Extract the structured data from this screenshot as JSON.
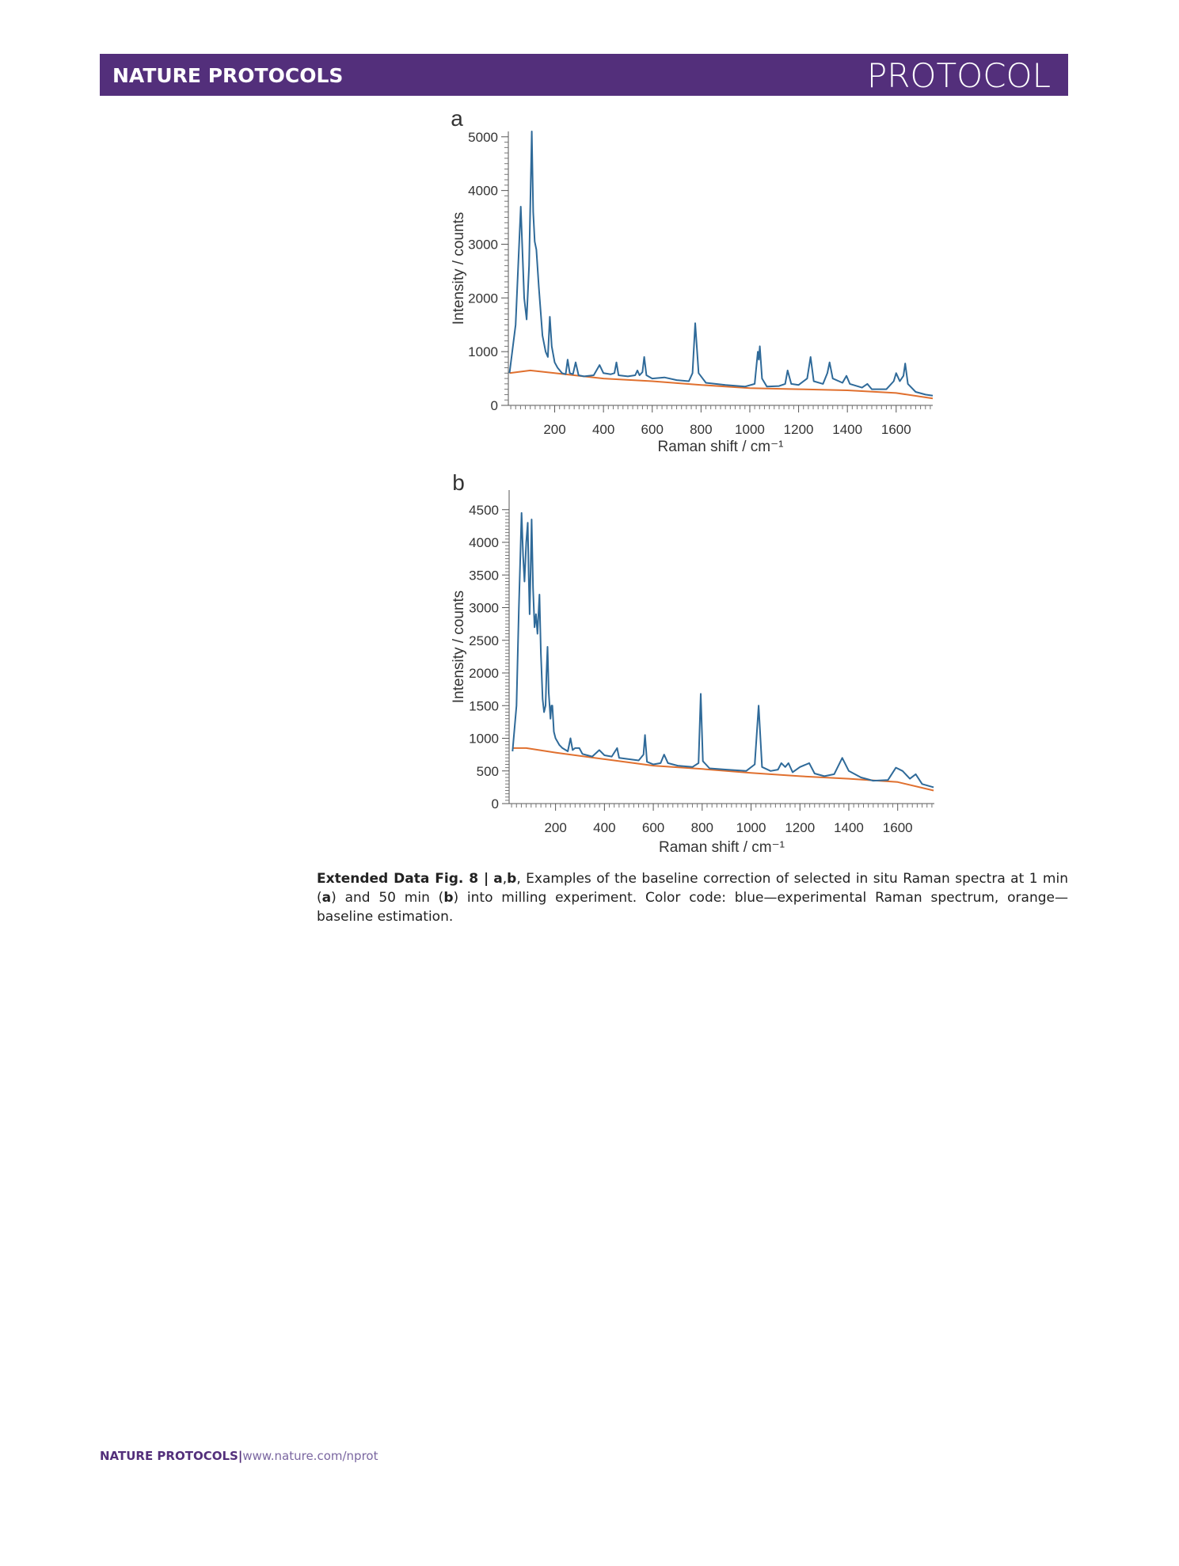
{
  "header": {
    "journal": "NATURE PROTOCOLS",
    "section": "PROTOCOL"
  },
  "chart_data": [
    {
      "type": "line",
      "panel": "a",
      "y_label": "Intensity / counts",
      "x_label": "Raman shift / cm⁻¹",
      "xlim": [
        10,
        1750
      ],
      "ylim": [
        0,
        5100
      ],
      "xticks": [
        200,
        400,
        600,
        800,
        1000,
        1200,
        1400,
        1600
      ],
      "yticks": [
        0,
        1000,
        2000,
        3000,
        4000,
        5000
      ],
      "series": [
        {
          "color": "#2f6a99",
          "x": [
            15,
            40,
            61,
            75,
            85,
            95,
            106,
            112,
            118,
            125,
            135,
            150,
            163,
            172,
            180,
            188,
            200,
            212,
            230,
            245,
            253,
            262,
            275,
            286,
            298,
            320,
            360,
            384,
            400,
            430,
            445,
            453,
            462,
            500,
            530,
            539,
            548,
            560,
            567,
            576,
            600,
            650,
            700,
            750,
            765,
            776,
            790,
            820,
            900,
            980,
            1020,
            1033,
            1037,
            1041,
            1050,
            1070,
            1120,
            1145,
            1155,
            1170,
            1200,
            1235,
            1249,
            1262,
            1300,
            1318,
            1327,
            1340,
            1380,
            1396,
            1410,
            1460,
            1482,
            1500,
            1560,
            1590,
            1600,
            1615,
            1630,
            1637,
            1648,
            1680,
            1720,
            1750
          ],
          "values": [
            600,
            1500,
            3700,
            2000,
            1600,
            2600,
            5100,
            3600,
            3050,
            2900,
            2200,
            1300,
            1000,
            900,
            1650,
            1100,
            800,
            700,
            600,
            580,
            850,
            600,
            580,
            800,
            560,
            540,
            560,
            750,
            600,
            580,
            600,
            800,
            560,
            540,
            560,
            650,
            560,
            620,
            900,
            560,
            500,
            520,
            470,
            450,
            600,
            1530,
            600,
            420,
            380,
            350,
            400,
            1000,
            850,
            1100,
            500,
            350,
            360,
            400,
            650,
            400,
            380,
            500,
            900,
            450,
            400,
            600,
            800,
            500,
            420,
            550,
            400,
            330,
            400,
            300,
            300,
            450,
            600,
            450,
            550,
            780,
            400,
            250,
            200,
            180
          ]
        },
        {
          "color": "#e0702f",
          "x": [
            15,
            100,
            200,
            400,
            600,
            800,
            1000,
            1200,
            1400,
            1600,
            1750
          ],
          "values": [
            600,
            650,
            600,
            500,
            450,
            380,
            320,
            300,
            280,
            230,
            130
          ]
        }
      ]
    },
    {
      "type": "line",
      "panel": "b",
      "y_label": "Intensity / counts",
      "x_label": "Raman shift / cm⁻¹",
      "xlim": [
        10,
        1750
      ],
      "ylim": [
        0,
        4800
      ],
      "xticks": [
        200,
        400,
        600,
        800,
        1000,
        1200,
        1400,
        1600
      ],
      "yticks": [
        0,
        500,
        1000,
        1500,
        2000,
        2500,
        3000,
        3500,
        4000,
        4500
      ],
      "series": [
        {
          "color": "#2f6a99",
          "x": [
            24,
            40,
            50,
            61,
            67,
            73,
            80,
            86,
            90,
            94,
            98,
            102,
            108,
            114,
            120,
            126,
            134,
            140,
            147,
            153,
            159,
            163,
            167,
            172,
            179,
            183,
            187,
            193,
            200,
            215,
            228,
            250,
            261,
            270,
            280,
            297,
            310,
            350,
            379,
            400,
            430,
            452,
            460,
            500,
            540,
            560,
            566,
            574,
            600,
            630,
            644,
            660,
            700,
            760,
            785,
            794,
            803,
            830,
            900,
            980,
            1015,
            1031,
            1045,
            1080,
            1110,
            1124,
            1140,
            1153,
            1170,
            1200,
            1238,
            1260,
            1300,
            1340,
            1373,
            1400,
            1450,
            1500,
            1560,
            1593,
            1620,
            1650,
            1674,
            1700,
            1747
          ],
          "values": [
            800,
            1500,
            3000,
            4450,
            3800,
            3400,
            4000,
            4300,
            3500,
            2900,
            3600,
            4350,
            3300,
            2700,
            2900,
            2600,
            3200,
            2300,
            1600,
            1400,
            1500,
            2000,
            2400,
            1700,
            1300,
            1500,
            1500,
            1100,
            1000,
            900,
            850,
            800,
            1000,
            820,
            850,
            850,
            760,
            720,
            820,
            740,
            720,
            850,
            700,
            680,
            660,
            750,
            1050,
            640,
            600,
            620,
            750,
            620,
            580,
            560,
            620,
            1680,
            650,
            540,
            520,
            500,
            600,
            1500,
            560,
            500,
            520,
            620,
            560,
            620,
            480,
            560,
            620,
            460,
            420,
            450,
            700,
            500,
            400,
            350,
            360,
            550,
            500,
            380,
            450,
            300,
            250
          ]
        },
        {
          "color": "#e0702f",
          "x": [
            24,
            80,
            200,
            400,
            600,
            800,
            1000,
            1200,
            1400,
            1600,
            1747
          ],
          "values": [
            850,
            850,
            780,
            680,
            580,
            530,
            470,
            420,
            380,
            330,
            200
          ]
        }
      ]
    }
  ],
  "caption": [
    {
      "text": "Extended Data Fig. 8 |",
      "bold": true
    },
    {
      "text": "a",
      "bold": true
    },
    {
      "text": ",",
      "bold": false
    },
    {
      "text": "b",
      "bold": true
    },
    {
      "text": ", Examples of the baseline correction of selected in situ Raman spectra at 1 min (",
      "bold": false
    },
    {
      "text": "a",
      "bold": true
    },
    {
      "text": ") and 50 min (",
      "bold": false
    },
    {
      "text": "b",
      "bold": true
    },
    {
      "text": ") into milling experiment. Color code: blue—experimental Raman spectrum, orange—baseline estimation.",
      "bold": false
    }
  ],
  "footer": {
    "journal": "NATURE PROTOCOLS",
    "separator": "|",
    "url": "www.nature.com/nprot"
  }
}
